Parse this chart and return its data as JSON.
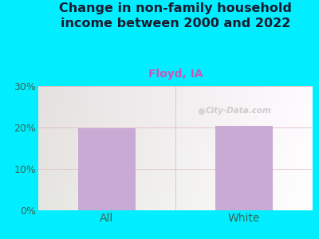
{
  "title": "Change in non-family household\nincome between 2000 and 2022",
  "subtitle": "Floyd, IA",
  "categories": [
    "All",
    "White"
  ],
  "values": [
    19.9,
    20.3
  ],
  "bar_color": "#c8aad4",
  "title_fontsize": 11.5,
  "subtitle_fontsize": 10,
  "subtitle_color": "#cc55bb",
  "title_color": "#1a1a2e",
  "tick_label_color": "#336655",
  "ylim": [
    0,
    30
  ],
  "yticks": [
    0,
    10,
    20,
    30
  ],
  "ytick_labels": [
    "0%",
    "10%",
    "20%",
    "30%"
  ],
  "bg_outer_color": "#00eeff",
  "watermark": "City-Data.com",
  "grid_color": "#ddbbbb",
  "bar_width": 0.42,
  "xtick_fontsize": 10,
  "ytick_fontsize": 9
}
